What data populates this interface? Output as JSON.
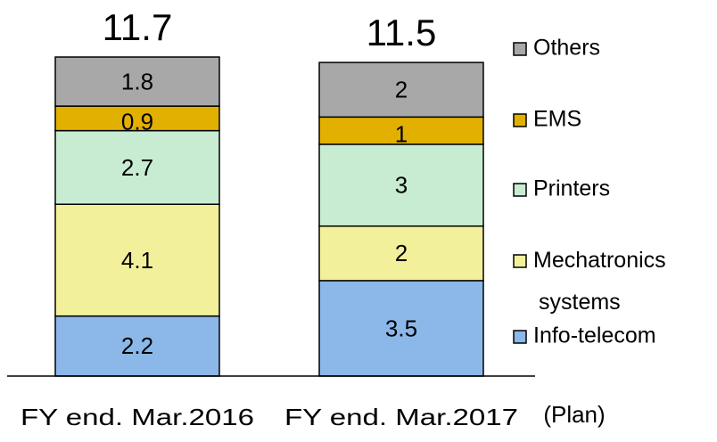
{
  "chart_data": {
    "type": "stacked_bar",
    "categories": [
      "FY end. Mar.2016",
      "FY end. Mar.2017"
    ],
    "annotation": "(Plan)",
    "totals": [
      11.7,
      11.5
    ],
    "series": [
      {
        "name": "Info-telecom",
        "color": "#8bb8e8",
        "values": [
          2.2,
          3.5
        ]
      },
      {
        "name": "Mechatronics systems",
        "color": "#f3f09c",
        "values": [
          4.1,
          2.0
        ]
      },
      {
        "name": "Printers",
        "color": "#c8ecd2",
        "values": [
          2.7,
          3.0
        ]
      },
      {
        "name": "EMS",
        "color": "#e2b000",
        "values": [
          0.9,
          1.0
        ]
      },
      {
        "name": "Others",
        "color": "#a8a8a8",
        "values": [
          1.8,
          2.0
        ]
      }
    ]
  }
}
